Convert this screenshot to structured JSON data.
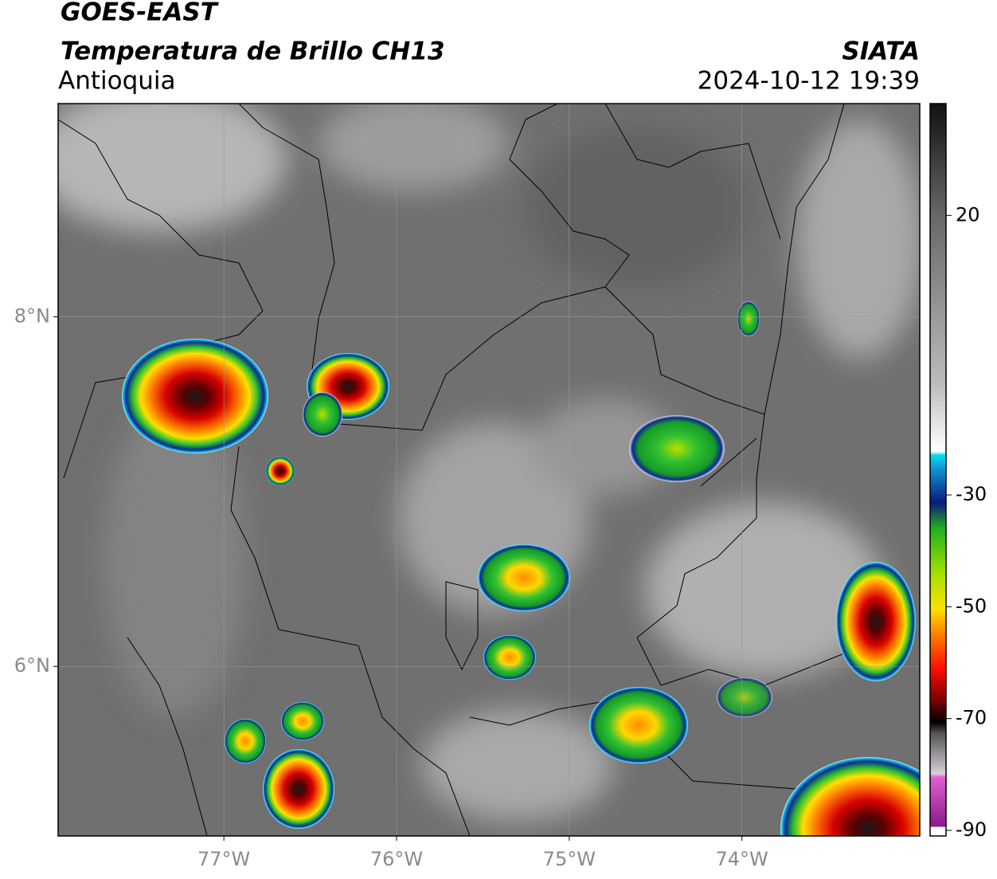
{
  "header": {
    "title": "GOES-EAST",
    "subtitle": "Temperatura de Brillo CH13",
    "region": "Antioquia",
    "source": "SIATA",
    "datetime": "2024-10-12 19:39"
  },
  "map": {
    "xlim": [
      -77.96,
      -72.97
    ],
    "ylim": [
      5.03,
      9.22
    ],
    "xticks": [
      {
        "value": -77,
        "label": "77°W"
      },
      {
        "value": -76,
        "label": "76°W"
      },
      {
        "value": -75,
        "label": "75°W"
      },
      {
        "value": -74,
        "label": "74°W"
      }
    ],
    "yticks": [
      {
        "value": 8,
        "label": "8°N"
      },
      {
        "value": 6,
        "label": "6°N"
      }
    ]
  },
  "colorbar": {
    "lim": [
      -91,
      40
    ],
    "ticks": [
      20,
      -30,
      -50,
      -70,
      -90
    ]
  }
}
